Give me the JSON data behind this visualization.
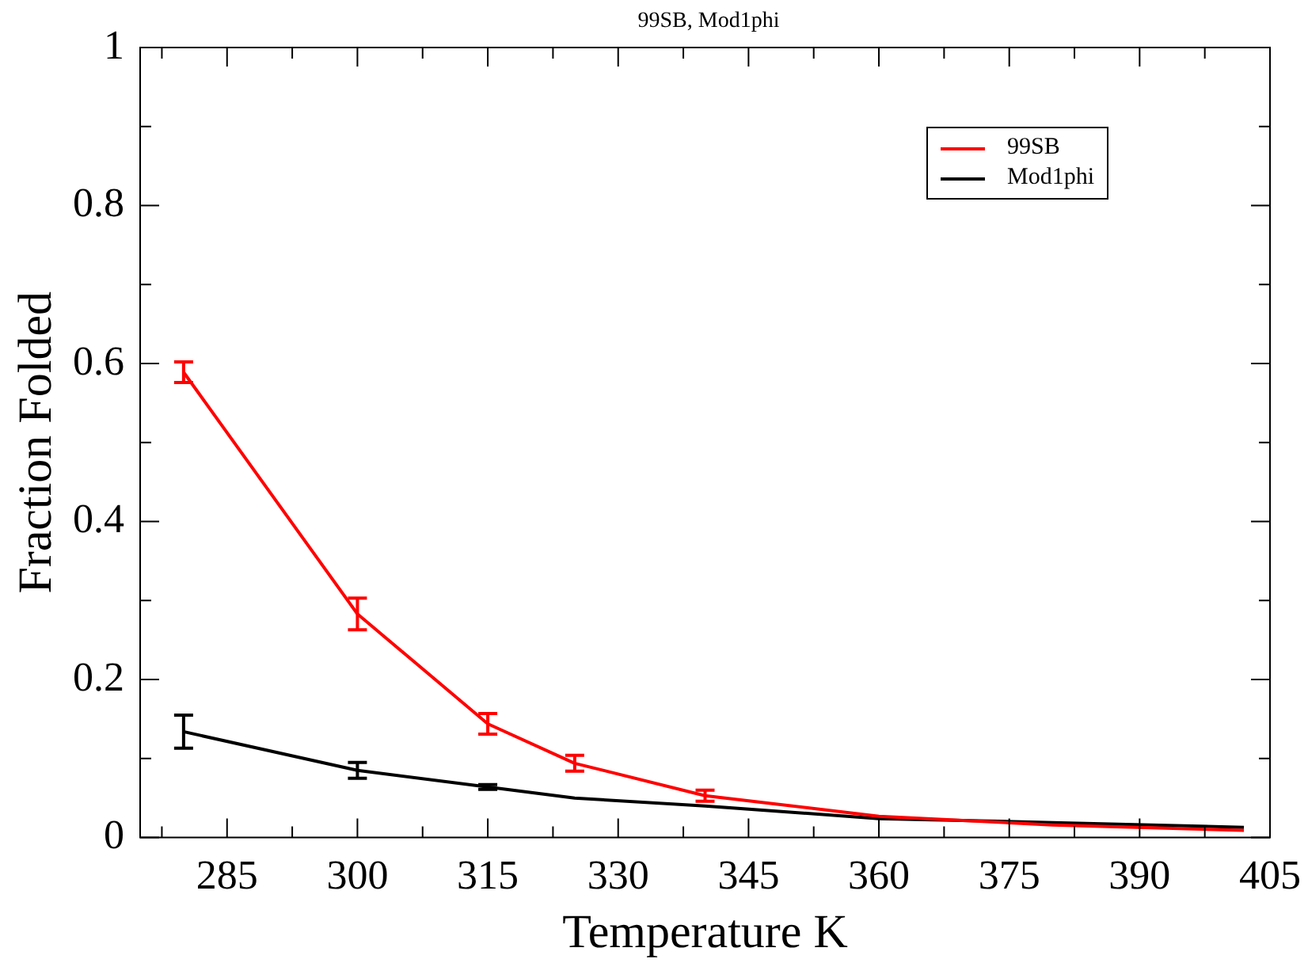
{
  "chart_data": {
    "type": "line",
    "title": "99SB, Mod1phi",
    "xlabel": "Temperature K",
    "ylabel": "Fraction Folded",
    "x": [
      280,
      300,
      315,
      325,
      340,
      360,
      380,
      402
    ],
    "series": [
      {
        "name": "99SB",
        "color": "#ff0000",
        "values": [
          0.589,
          0.283,
          0.144,
          0.094,
          0.053,
          0.027,
          0.016,
          0.009
        ],
        "errors": [
          0.013,
          0.02,
          0.013,
          0.01,
          0.007,
          null,
          null,
          null
        ]
      },
      {
        "name": "Mod1phi",
        "color": "#000000",
        "values": [
          0.134,
          0.085,
          0.064,
          0.05,
          0.04,
          0.024,
          0.019,
          0.013
        ],
        "errors": [
          0.021,
          0.01,
          0.003,
          null,
          null,
          null,
          null,
          null
        ]
      }
    ],
    "xlim": [
      275,
      405
    ],
    "ylim": [
      0,
      1
    ],
    "xticks": [
      285,
      300,
      315,
      330,
      345,
      360,
      375,
      390,
      405,
      {
        "value": 277.5,
        "label": null
      },
      {
        "value": 292.5,
        "label": null
      },
      {
        "value": 307.5,
        "label": null
      },
      {
        "value": 322.5,
        "label": null
      },
      {
        "value": 337.5,
        "label": null
      },
      {
        "value": 352.5,
        "label": null
      },
      {
        "value": 367.5,
        "label": null
      },
      {
        "value": 382.5,
        "label": null
      },
      {
        "value": 397.5,
        "label": null
      }
    ],
    "yticks": [
      0,
      0.2,
      0.4,
      0.6,
      0.8,
      1,
      {
        "value": 0.1,
        "label": null
      },
      {
        "value": 0.3,
        "label": null
      },
      {
        "value": 0.5,
        "label": null
      },
      {
        "value": 0.7,
        "label": null
      },
      {
        "value": 0.9,
        "label": null
      }
    ],
    "legend": "top right",
    "line_style": "solid"
  }
}
